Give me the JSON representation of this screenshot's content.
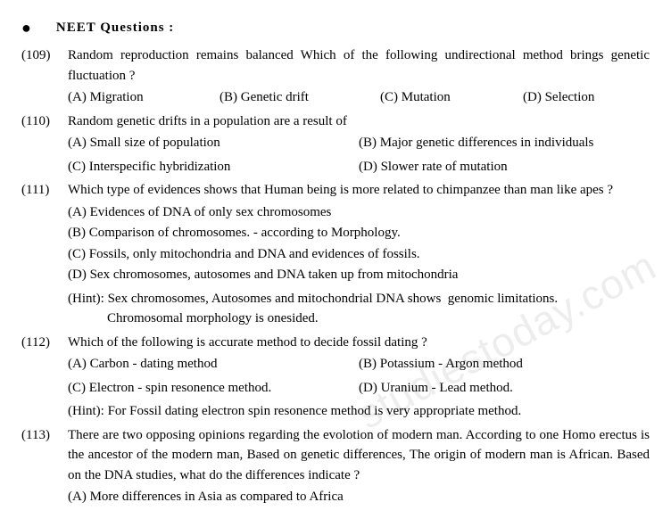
{
  "header": {
    "bullet": "●",
    "title": "NEET  Questions  :"
  },
  "questions": [
    {
      "num": "(109)",
      "text": "Random reproduction remains balanced Which of the following undirectional method brings genetic fluctuation ?",
      "opts_layout": "row4",
      "options": [
        "(A) Migration",
        "(B) Genetic drift",
        "(C) Mutation",
        "(D) Selection"
      ]
    },
    {
      "num": "(110)",
      "text": "Random genetic drifts in a population are a result of",
      "opts_layout": "grid2",
      "options": [
        "(A) Small size of population",
        "(B) Major genetic differences in individuals",
        "(C) Interspecific hybridization",
        "(D) Slower rate of mutation"
      ]
    },
    {
      "num": "(111)",
      "text": "Which type of evidences shows that Human being is more related to chimpanzee than man like apes ?",
      "opts_layout": "block",
      "options": [
        "(A) Evidences of DNA of only sex chromosomes",
        "(B) Comparison of chromosomes. - according to Morphology.",
        "(C) Fossils, only mitochondria and DNA and evidences of fossils.",
        "(D) Sex chromosomes, autosomes and DNA taken up from mitochondria"
      ],
      "hint": "(Hint): Sex chromosomes, Autosomes and mitochondrial DNA shows  genomic limitations. Chromosomal morphology is onesided."
    },
    {
      "num": "(112)",
      "text": "Which of the following is accurate method to decide fossil dating ?",
      "opts_layout": "grid2b",
      "options": [
        "(A) Carbon - dating method",
        "(B) Potassium - Argon method",
        "(C) Electron - spin resonence method.",
        "(D) Uranium - Lead method."
      ],
      "hint": "(Hint): For Fossil dating electron spin resonence method is very appropriate method."
    },
    {
      "num": "(113)",
      "text": "There are two opposing opinions regarding the evolotion of modern man. According to one Homo erectus is the ancestor of the modern man, Based on genetic differences, The origin of modern man is African. Based on the DNA studies, what do the differences indicate ?",
      "opts_layout": "block",
      "options": [
        "(A) More differences in Asia as compared to Africa"
      ]
    }
  ],
  "watermark": "studiestoday.com"
}
